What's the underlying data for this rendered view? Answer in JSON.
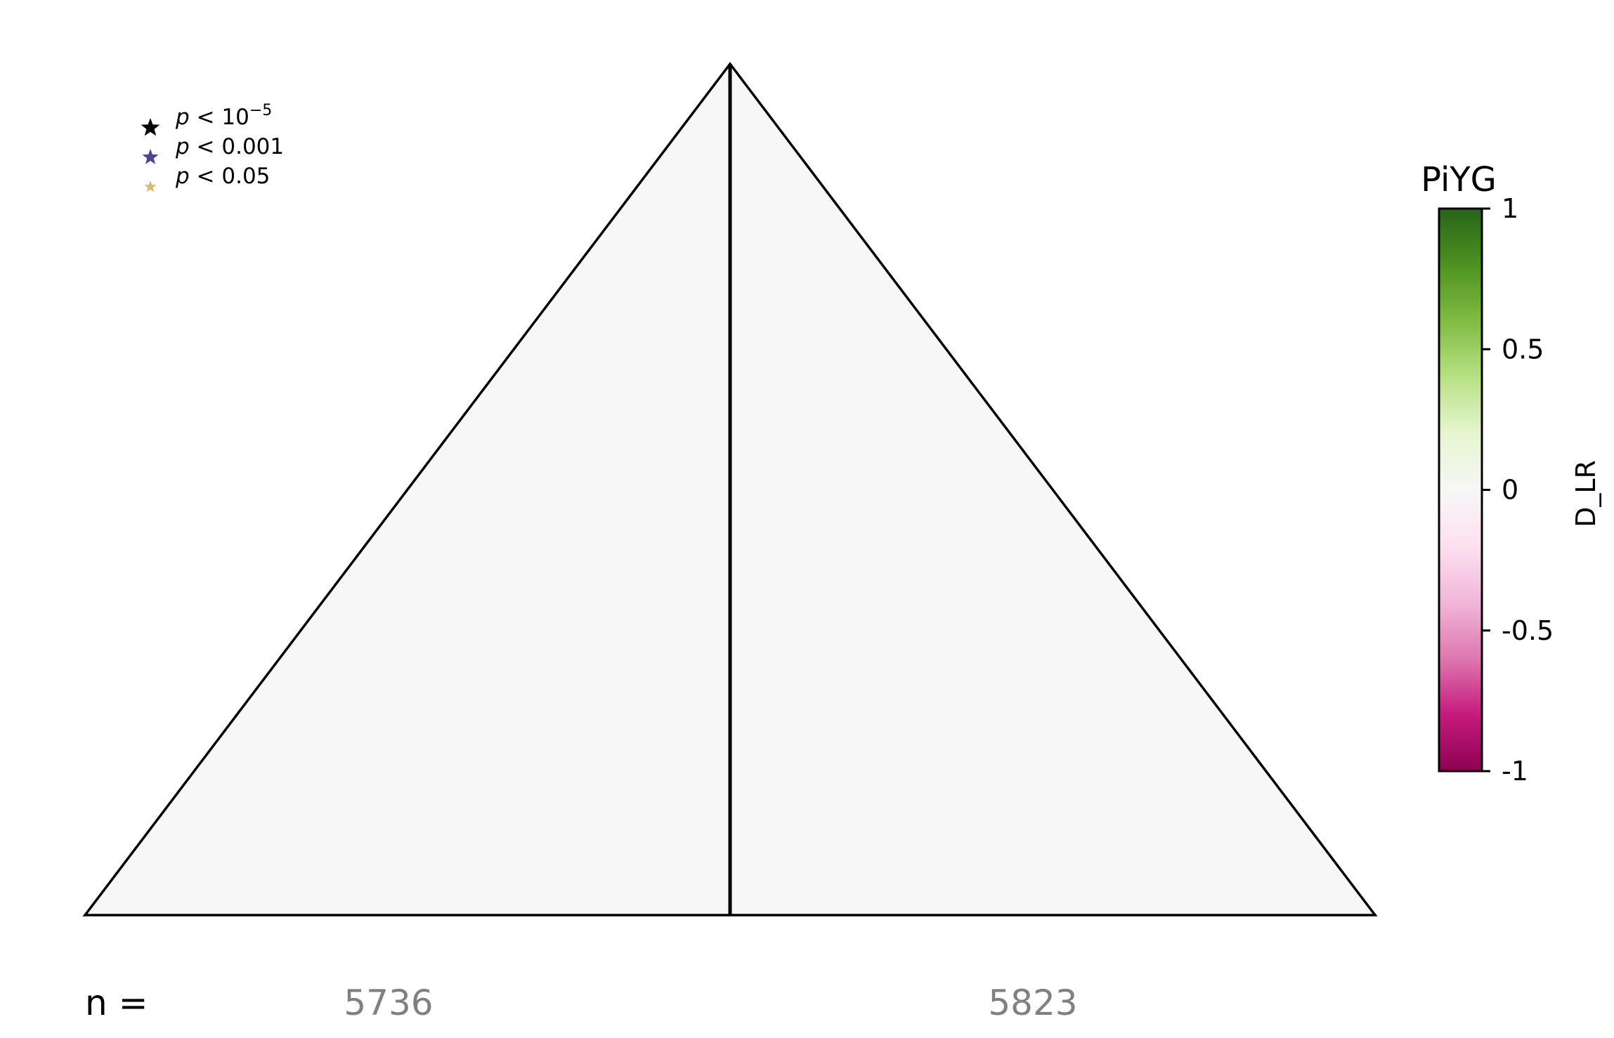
{
  "chart_data": {
    "type": "heatmap",
    "regions": [
      {
        "name": "left",
        "D_LR": 0.0,
        "n": "5736"
      },
      {
        "name": "right",
        "D_LR": 0.0,
        "n": "5823"
      }
    ],
    "n_label": "n =",
    "legend": {
      "placement": "top-left",
      "entries": [
        {
          "p_var": "p",
          "op": "<",
          "base": "10",
          "exp": "−5",
          "value": "",
          "color": "#000000"
        },
        {
          "p_var": "p",
          "op": "<",
          "base": "",
          "exp": "",
          "value": "0.001",
          "color": "#4B4594"
        },
        {
          "p_var": "p",
          "op": "<",
          "base": "",
          "exp": "",
          "value": "0.05",
          "color": "#D9B96E"
        }
      ]
    },
    "colorbar": {
      "title": "PiYG",
      "label": "D_LR",
      "range": [
        -1,
        1
      ],
      "ticks": [
        {
          "value": 1,
          "label": "1"
        },
        {
          "value": 0.5,
          "label": "0.5"
        },
        {
          "value": 0,
          "label": "0"
        },
        {
          "value": -0.5,
          "label": "-0.5"
        },
        {
          "value": -1,
          "label": "-1"
        }
      ],
      "colors": [
        "#8e0152",
        "#c51b7d",
        "#de77ae",
        "#f1b6da",
        "#fde0ef",
        "#f7f7f7",
        "#e6f5d0",
        "#b8e186",
        "#7fbc41",
        "#4d9221",
        "#276419"
      ]
    },
    "grid": false
  }
}
